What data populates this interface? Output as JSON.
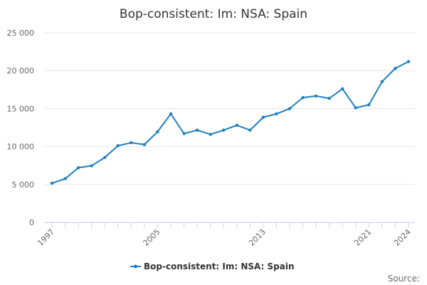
{
  "chart_data": {
    "type": "line",
    "title": "Bop-consistent: Im: NSA: Spain",
    "xlabel": "",
    "ylabel": "",
    "x": [
      1997,
      1998,
      1999,
      2000,
      2001,
      2002,
      2003,
      2004,
      2005,
      2006,
      2007,
      2008,
      2009,
      2010,
      2011,
      2012,
      2013,
      2014,
      2015,
      2016,
      2017,
      2018,
      2019,
      2020,
      2021,
      2022,
      2023,
      2024
    ],
    "series": [
      {
        "name": "Bop-consistent: Im: NSA: Spain",
        "color": "#1f7fbf",
        "values": [
          5150,
          5750,
          7200,
          7450,
          8550,
          10100,
          10500,
          10250,
          11950,
          14300,
          11700,
          12150,
          11600,
          12150,
          12800,
          12150,
          13850,
          14300,
          15000,
          16450,
          16650,
          16350,
          17600,
          15100,
          15500,
          18550,
          20300,
          21200
        ]
      }
    ],
    "ylim": [
      0,
      25000
    ],
    "yticks": [
      0,
      5000,
      10000,
      15000,
      20000,
      25000
    ],
    "ytick_labels": [
      "0",
      "5 000",
      "10 000",
      "15 000",
      "20 000",
      "25 000"
    ],
    "xticks": [
      1997,
      2005,
      2013,
      2021,
      2024
    ],
    "xtick_labels": [
      "1997",
      "2005",
      "2013",
      "2021",
      "2024"
    ],
    "grid": true,
    "legend_position": "bottom-center",
    "credit": "Source:"
  }
}
